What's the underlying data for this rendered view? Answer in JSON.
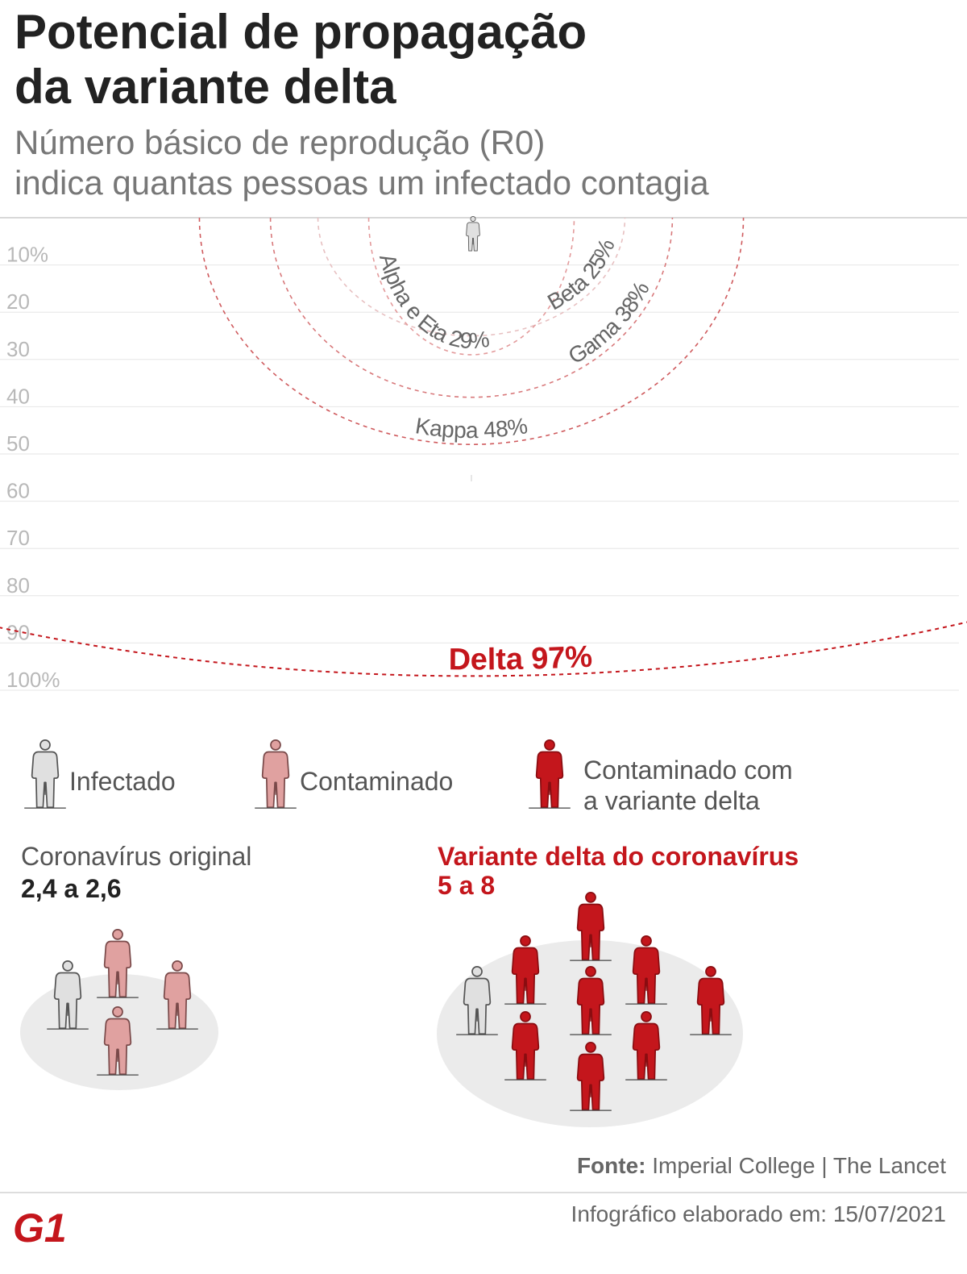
{
  "header": {
    "title_line1": "Potencial de propagação",
    "title_line2": "da variante delta",
    "subtitle_line1": "Número básico de reprodução (R0)",
    "subtitle_line2": "indica quantas pessoas um infectado contagia"
  },
  "chart_data": {
    "type": "other",
    "description_axis_ticks": [
      "10%",
      "20",
      "30",
      "40",
      "50",
      "60",
      "70",
      "80",
      "90",
      "100%"
    ],
    "ylim": [
      0,
      100
    ],
    "series": [
      {
        "name": "Beta",
        "value": 25,
        "label": "Beta 25%"
      },
      {
        "name": "Alpha e Eta",
        "value": 29,
        "label": "Alpha e Eta 29%"
      },
      {
        "name": "Gama",
        "value": 38,
        "label": "Gama 38%"
      },
      {
        "name": "Kappa",
        "value": 48,
        "label": "Kappa 48%"
      },
      {
        "name": "Delta",
        "value": 97,
        "label": "Delta 97%"
      }
    ],
    "colors": {
      "delta": "#c4161c",
      "kappa": "#cf5a5d",
      "gama": "#d8797b",
      "alpha_eta": "#e39b9c",
      "beta": "#e7c0c1",
      "gridline": "#e6e6e6",
      "tick_text": "#b8b8b8"
    }
  },
  "legend": {
    "items": [
      {
        "label": "Infectado",
        "color": "#e0e0e0"
      },
      {
        "label": "Contaminado",
        "color": "#e0a1a0"
      },
      {
        "label_line1": "Contaminado com",
        "label_line2": "a variante delta",
        "color": "#c4161c"
      }
    ]
  },
  "panels": {
    "original": {
      "title": "Coronavírus original",
      "value": "2,4 a 2,6",
      "title_color": "#555555",
      "value_color": "#222222",
      "infected_count": 1,
      "contaminated_count": 3
    },
    "delta": {
      "title": "Variante delta do coronavírus",
      "value": "5 a 8",
      "title_color": "#c4161c",
      "value_color": "#c4161c",
      "infected_count": 1,
      "contaminated_count": 8
    }
  },
  "footer": {
    "source_label": "Fonte:",
    "source_text": "Imperial College | The Lancet",
    "credit": "Infográfico elaborado em: 15/07/2021",
    "logo": "G1",
    "logo_color": "#c4161c"
  }
}
